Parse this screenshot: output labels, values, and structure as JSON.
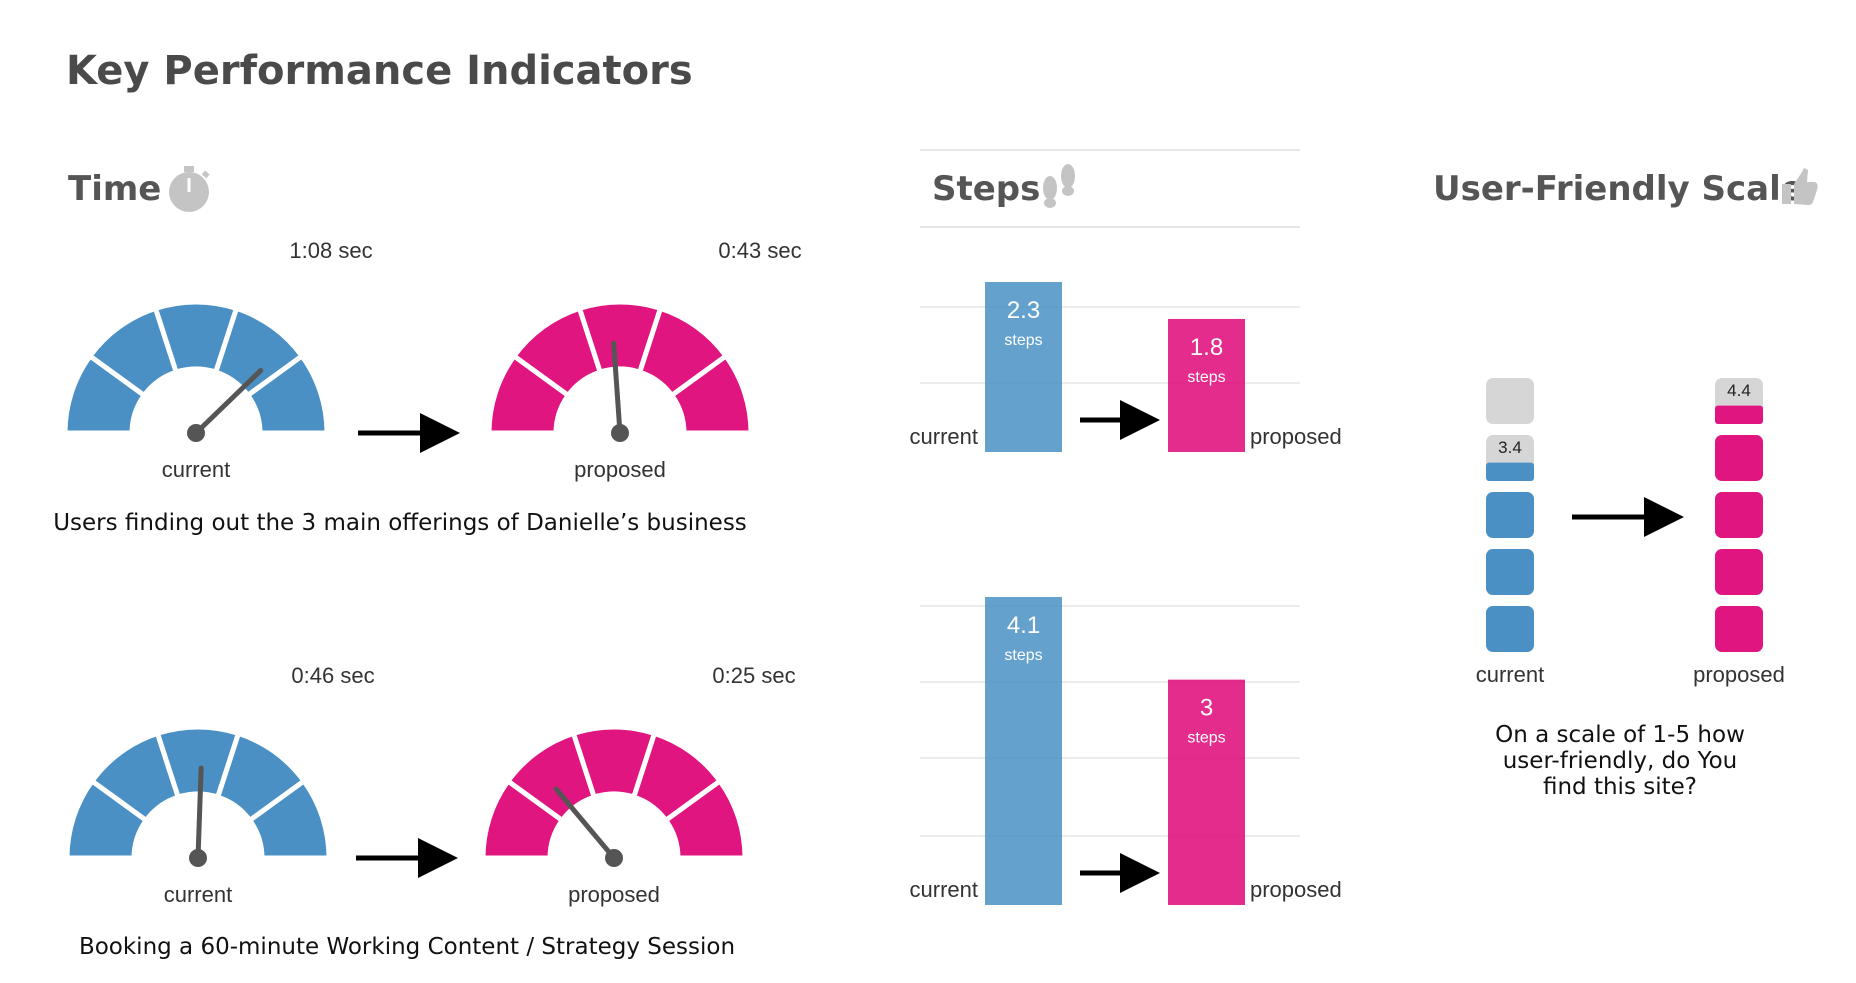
{
  "page": {
    "title": "Key Performance Indicators"
  },
  "sections": {
    "time": {
      "title": "Time",
      "icon": "stopwatch-icon"
    },
    "steps": {
      "title": "Steps",
      "icon": "footprints-icon"
    },
    "scale": {
      "title": "User-Friendly Scale",
      "icon": "thumbs-up-icon"
    }
  },
  "colors": {
    "current": "#4a90c4",
    "proposed": "#e0157f",
    "needle": "#555555",
    "inactive": "#d6d6d6"
  },
  "chart_data": [
    {
      "type": "gauge",
      "caption": "Users finding out the 3 main offerings of Danielle’s business",
      "series": [
        {
          "name": "current",
          "value_label": "1:08 sec",
          "value_seconds": 68
        },
        {
          "name": "proposed",
          "value_label": "0:43 sec",
          "value_seconds": 43
        }
      ]
    },
    {
      "type": "gauge",
      "caption": "Booking a 60-minute Working Content / Strategy Session",
      "series": [
        {
          "name": "current",
          "value_label": "0:46 sec",
          "value_seconds": 46
        },
        {
          "name": "proposed",
          "value_label": "0:25 sec",
          "value_seconds": 25
        }
      ]
    },
    {
      "type": "bar",
      "categories": [
        "current",
        "proposed"
      ],
      "values": [
        2.3,
        1.8
      ],
      "value_labels": [
        "2.3",
        "1.8"
      ],
      "unit": "steps"
    },
    {
      "type": "bar",
      "categories": [
        "current",
        "proposed"
      ],
      "values": [
        4.1,
        3
      ],
      "value_labels": [
        "4.1",
        "3"
      ],
      "unit": "steps"
    },
    {
      "type": "bar",
      "caption_lines": [
        "On a scale of 1-5 how",
        "user-friendly, do You",
        "find this site?"
      ],
      "categories": [
        "current",
        "proposed"
      ],
      "values": [
        3.4,
        4.4
      ],
      "value_labels": [
        "3.4",
        "4.4"
      ],
      "ylim": [
        0,
        5
      ]
    }
  ]
}
